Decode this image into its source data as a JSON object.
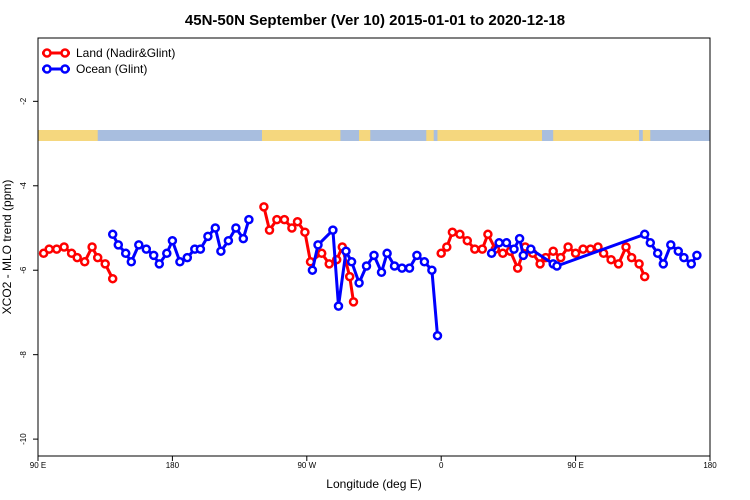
{
  "chart_data": {
    "type": "line",
    "title": "45N-50N September (Ver 10)   2015-01-01 to 2020-12-18",
    "xlabel": "Longitude (deg E)",
    "ylabel": "XCO2 - MLO trend (ppm)",
    "xlim": [
      90,
      450
    ],
    "ylim": [
      -10.4,
      -0.5
    ],
    "x_ticks": [
      {
        "value": 90,
        "label": "90 E"
      },
      {
        "value": 162,
        "label": "180"
      },
      {
        "value": 234,
        "label": "90 W"
      },
      {
        "value": 306,
        "label": "0"
      },
      {
        "value": 378,
        "label": "90 E"
      },
      {
        "value": 450,
        "label": "180"
      }
    ],
    "y_ticks": [
      -2,
      -4,
      -6,
      -8,
      -10
    ],
    "grid": false,
    "legend_position": "top-left",
    "map_strip": {
      "land_color": "#f5d77e",
      "ocean_color": "#a8bedf"
    },
    "series": [
      {
        "name": "Land (Nadir&Glint)",
        "color": "#ff0000",
        "segments": [
          [
            [
              93,
              -5.6
            ],
            [
              96,
              -5.5
            ],
            [
              100,
              -5.5
            ],
            [
              104,
              -5.45
            ],
            [
              108,
              -5.6
            ],
            [
              111,
              -5.7
            ],
            [
              115,
              -5.8
            ],
            [
              119,
              -5.45
            ],
            [
              122,
              -5.7
            ],
            [
              126,
              -5.85
            ],
            [
              130,
              -6.2
            ]
          ],
          [
            [
              211,
              -4.5
            ],
            [
              214,
              -5.05
            ],
            [
              218,
              -4.8
            ],
            [
              222,
              -4.8
            ],
            [
              226,
              -5.0
            ],
            [
              229,
              -4.85
            ],
            [
              233,
              -5.1
            ],
            [
              236,
              -5.8
            ],
            [
              242,
              -5.6
            ],
            [
              246,
              -5.85
            ],
            [
              250,
              -5.75
            ],
            [
              253,
              -5.45
            ],
            [
              257,
              -6.15
            ],
            [
              259,
              -6.75
            ]
          ],
          [
            [
              306,
              -5.6
            ],
            [
              309,
              -5.45
            ],
            [
              312,
              -5.1
            ],
            [
              316,
              -5.15
            ],
            [
              320,
              -5.3
            ],
            [
              324,
              -5.5
            ],
            [
              328,
              -5.5
            ],
            [
              331,
              -5.15
            ],
            [
              335,
              -5.5
            ],
            [
              339,
              -5.6
            ],
            [
              343,
              -5.55
            ],
            [
              347,
              -5.95
            ],
            [
              351,
              -5.45
            ],
            [
              355,
              -5.6
            ],
            [
              359,
              -5.85
            ],
            [
              362,
              -5.7
            ],
            [
              366,
              -5.55
            ],
            [
              370,
              -5.7
            ],
            [
              374,
              -5.45
            ],
            [
              378,
              -5.6
            ],
            [
              382,
              -5.5
            ],
            [
              386,
              -5.5
            ],
            [
              390,
              -5.45
            ],
            [
              393,
              -5.6
            ],
            [
              397,
              -5.75
            ],
            [
              401,
              -5.85
            ],
            [
              405,
              -5.45
            ],
            [
              408,
              -5.7
            ],
            [
              412,
              -5.85
            ],
            [
              415,
              -6.15
            ]
          ]
        ]
      },
      {
        "name": "Ocean (Glint)",
        "color": "#0000ff",
        "segments": [
          [
            [
              130,
              -5.15
            ],
            [
              133,
              -5.4
            ],
            [
              137,
              -5.6
            ],
            [
              140,
              -5.8
            ],
            [
              144,
              -5.4
            ],
            [
              148,
              -5.5
            ],
            [
              152,
              -5.65
            ],
            [
              155,
              -5.85
            ],
            [
              159,
              -5.6
            ],
            [
              162,
              -5.3
            ],
            [
              166,
              -5.8
            ],
            [
              170,
              -5.7
            ],
            [
              174,
              -5.5
            ],
            [
              177,
              -5.5
            ],
            [
              181,
              -5.2
            ],
            [
              185,
              -5.0
            ],
            [
              188,
              -5.55
            ],
            [
              192,
              -5.3
            ],
            [
              196,
              -5.0
            ],
            [
              200,
              -5.25
            ],
            [
              203,
              -4.8
            ]
          ],
          [
            [
              237,
              -6.0
            ],
            [
              240,
              -5.4
            ],
            [
              248,
              -5.05
            ],
            [
              251,
              -6.85
            ],
            [
              255,
              -5.55
            ],
            [
              258,
              -5.8
            ],
            [
              262,
              -6.3
            ],
            [
              266,
              -5.9
            ],
            [
              270,
              -5.65
            ],
            [
              274,
              -6.05
            ],
            [
              277,
              -5.6
            ],
            [
              281,
              -5.9
            ],
            [
              285,
              -5.95
            ],
            [
              289,
              -5.95
            ],
            [
              293,
              -5.65
            ],
            [
              297,
              -5.8
            ],
            [
              301,
              -6.0
            ],
            [
              304,
              -7.55
            ]
          ],
          [
            [
              333,
              -5.6
            ],
            [
              337,
              -5.35
            ],
            [
              341,
              -5.35
            ],
            [
              345,
              -5.5
            ],
            [
              348,
              -5.25
            ],
            [
              350,
              -5.65
            ],
            [
              354,
              -5.5
            ],
            [
              366,
              -5.85
            ],
            [
              368,
              -5.9
            ],
            [
              415,
              -5.15
            ],
            [
              418,
              -5.35
            ],
            [
              422,
              -5.6
            ],
            [
              425,
              -5.85
            ],
            [
              429,
              -5.4
            ],
            [
              433,
              -5.55
            ],
            [
              436,
              -5.7
            ],
            [
              440,
              -5.85
            ],
            [
              443,
              -5.65
            ]
          ]
        ]
      }
    ]
  }
}
